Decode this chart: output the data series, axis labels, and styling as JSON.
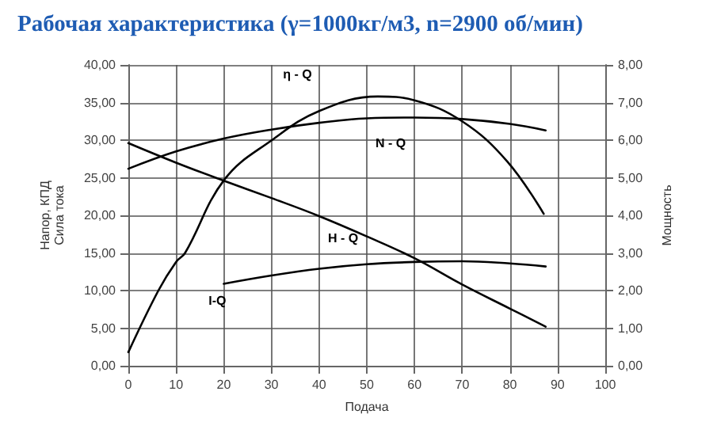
{
  "chart_data": {
    "type": "line",
    "title": "Рабочая характеристика (γ=1000кг/м3, n=2900 об/мин)",
    "xlabel": "Подача",
    "ylabel": "Напор, КПД\nСила тока",
    "y2label": "Мощность",
    "xlim": [
      0,
      100
    ],
    "xticks": [
      0,
      10,
      20,
      30,
      40,
      50,
      60,
      70,
      80,
      90,
      100
    ],
    "ylim": [
      0,
      40
    ],
    "yticks": [
      {
        "value": 0,
        "label": "0,00"
      },
      {
        "value": 5,
        "label": "5,00"
      },
      {
        "value": 10,
        "label": "10,00"
      },
      {
        "value": 15,
        "label": "15,00"
      },
      {
        "value": 20,
        "label": "20,00"
      },
      {
        "value": 25,
        "label": "25,00"
      },
      {
        "value": 30,
        "label": "30,00"
      },
      {
        "value": 35,
        "label": "35,00"
      },
      {
        "value": 40,
        "label": "40,00"
      }
    ],
    "y2lim": [
      0,
      8
    ],
    "y2ticks": [
      {
        "value": 0,
        "label": "0,00"
      },
      {
        "value": 1,
        "label": "1,00"
      },
      {
        "value": 2,
        "label": "2,00"
      },
      {
        "value": 3,
        "label": "3,00"
      },
      {
        "value": 4,
        "label": "4,00"
      },
      {
        "value": 5,
        "label": "5,00"
      },
      {
        "value": 6,
        "label": "6,00"
      },
      {
        "value": 7,
        "label": "7,00"
      },
      {
        "value": 8,
        "label": "8,00"
      }
    ],
    "grid": true,
    "legend": false,
    "marker": "none",
    "line_style": "solid",
    "series": [
      {
        "name": "η - Q",
        "color": "#000000",
        "x": [
          0,
          6.3,
          10,
          11.9,
          20.2,
          30.1,
          40.1,
          52.3,
          60,
          70,
          79.4,
          87.1
        ],
        "values": [
          1.8,
          10,
          13.8,
          15,
          24.8,
          30,
          33.9,
          35.8,
          35.3,
          32.5,
          27.2,
          20.2
        ]
      },
      {
        "name": "N - Q",
        "color": "#000000",
        "axis": "y2",
        "x": [
          0,
          10,
          20,
          30,
          40,
          50,
          60,
          70,
          80,
          87.5
        ],
        "values": [
          5.24,
          5.7,
          6.04,
          6.28,
          6.46,
          6.58,
          6.6,
          6.56,
          6.43,
          6.26
        ]
      },
      {
        "name": "H - Q",
        "color": "#000000",
        "x": [
          0,
          10,
          20,
          30,
          40,
          50,
          60,
          70,
          80,
          87.5
        ],
        "values": [
          29.6,
          27.0,
          24.6,
          22.3,
          19.9,
          17.2,
          14.3,
          10.8,
          7.6,
          5.2
        ]
      },
      {
        "name": "I-Q",
        "color": "#000000",
        "x": [
          20,
          30,
          40,
          50,
          60,
          70,
          80,
          87.5
        ],
        "values": [
          10.9,
          12.0,
          12.9,
          13.5,
          13.8,
          13.9,
          13.6,
          13.2
        ]
      }
    ]
  }
}
